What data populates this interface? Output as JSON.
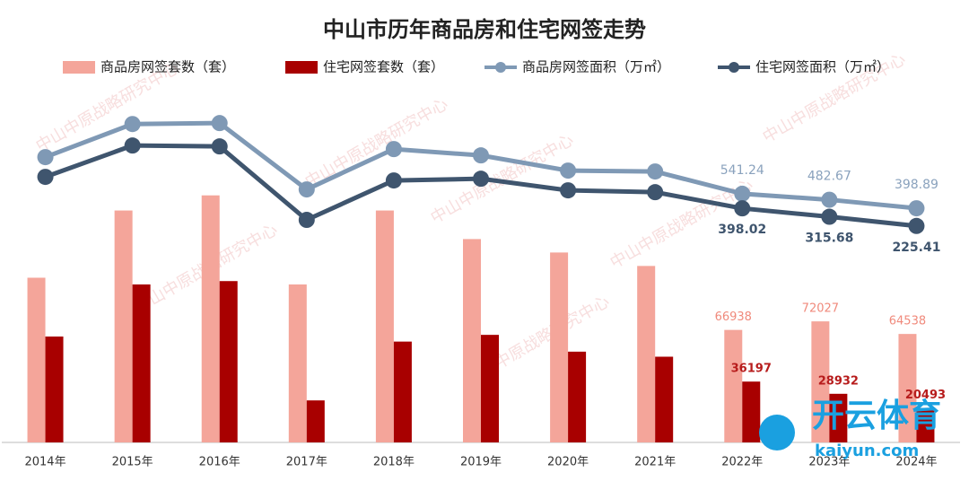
{
  "chart_data": {
    "type": "bar",
    "title": "中山市历年商品房和住宅网签走势",
    "categories": [
      "2014年",
      "2015年",
      "2016年",
      "2017年",
      "2018年",
      "2019年",
      "2020年",
      "2021年",
      "2022年",
      "2023年",
      "2024年"
    ],
    "series": [
      {
        "name": "商品房网签套数（套）",
        "type": "bar",
        "color": "#f4a59a",
        "label_color": "#f08a7c",
        "values": [
          98000,
          138000,
          147000,
          94000,
          138000,
          121000,
          113000,
          105000,
          66938,
          72027,
          64538
        ],
        "value_labels": [
          null,
          null,
          null,
          null,
          null,
          null,
          null,
          null,
          "66938",
          "72027",
          "64538"
        ]
      },
      {
        "name": "住宅网签套数（套）",
        "type": "bar",
        "color": "#a80000",
        "label_color": "#b71c1c",
        "values": [
          63000,
          94000,
          96000,
          25000,
          60000,
          64000,
          54000,
          51000,
          36197,
          28932,
          20493
        ],
        "value_labels": [
          null,
          null,
          null,
          null,
          null,
          null,
          null,
          null,
          "36197",
          "28932",
          "20493"
        ]
      },
      {
        "name": "商品房网签面积（万㎡）",
        "type": "line",
        "axis": "y2",
        "color": "#7f99b5",
        "label_color": "#8aa2bd",
        "values": [
          901,
          1226,
          1235,
          584,
          980,
          918,
          769,
          760,
          541.24,
          482.67,
          398.89
        ],
        "value_labels": [
          null,
          null,
          null,
          null,
          null,
          null,
          null,
          null,
          "541.24",
          "482.67",
          "398.89"
        ]
      },
      {
        "name": "住宅网签面积（万㎡）",
        "type": "line",
        "axis": "y2",
        "color": "#3f556e",
        "label_color": "#3f556e",
        "values": [
          707,
          1015,
          1006,
          285,
          672,
          689,
          575,
          557,
          398.02,
          315.68,
          225.41
        ],
        "value_labels": [
          null,
          null,
          null,
          null,
          null,
          null,
          null,
          null,
          "398.02",
          "315.68",
          "225.41"
        ]
      }
    ],
    "ylim": [
      0,
      220000
    ],
    "y2lim": [
      -1900,
      1730
    ],
    "legend": "top",
    "watermark": "中山中原战略研究中心",
    "logo": "开云体育",
    "logo_sub": "kaiyun.com"
  }
}
